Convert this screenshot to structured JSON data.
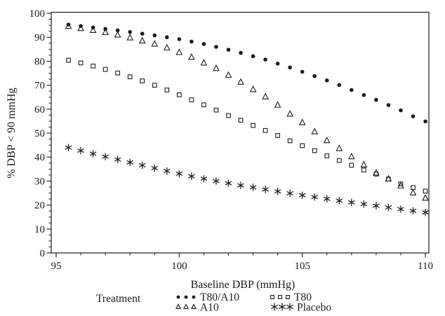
{
  "chart_data": {
    "type": "scatter",
    "title": "",
    "xlabel": "Baseline DBP (mmHg)",
    "ylabel": "% DBP < 90 mmHg",
    "legend_title": "Treatment",
    "legend_position": "bottom",
    "grid": "off",
    "background": "#ffffff",
    "foreground": "#1b1b1b",
    "xlim": [
      94.8,
      110.2
    ],
    "ylim": [
      0,
      100.3
    ],
    "x_ticks": [
      95,
      100,
      105,
      110
    ],
    "x_minor_tick_step": 1,
    "y_ticks": [
      0,
      10,
      20,
      30,
      40,
      50,
      60,
      70,
      80,
      90,
      100
    ],
    "y_minor_tick_step": 2.5,
    "x": [
      95.5,
      96,
      96.5,
      97,
      97.5,
      98,
      98.5,
      99,
      99.5,
      100,
      100.5,
      101,
      101.5,
      102,
      102.5,
      103,
      103.5,
      104,
      104.5,
      105,
      105.5,
      106,
      106.5,
      107,
      107.5,
      108,
      108.5,
      109,
      109.5,
      110
    ],
    "series": [
      {
        "name": "T80/A10",
        "marker": "filled-circle",
        "values": [
          95.3,
          94.7,
          94.1,
          93.5,
          92.9,
          92.2,
          91.5,
          90.8,
          90.0,
          89.2,
          88.2,
          87.2,
          86.0,
          84.8,
          83.5,
          82.1,
          80.7,
          79.0,
          77.4,
          75.6,
          73.8,
          72.0,
          70.1,
          68.0,
          65.9,
          63.9,
          61.7,
          59.5,
          57.0,
          54.9
        ]
      },
      {
        "name": "A10",
        "marker": "open-triangle",
        "values": [
          94.6,
          93.7,
          92.9,
          92.0,
          91.0,
          89.8,
          88.5,
          87.2,
          85.6,
          83.7,
          81.7,
          79.3,
          77.0,
          74.2,
          71.3,
          68.2,
          65.2,
          61.7,
          58.0,
          54.4,
          50.6,
          46.9,
          43.6,
          40.2,
          36.8,
          33.4,
          30.9,
          28.0,
          25.1,
          22.9
        ]
      },
      {
        "name": "T80",
        "marker": "open-square",
        "values": [
          80.4,
          79.3,
          78.0,
          76.6,
          75.1,
          73.5,
          71.8,
          70.0,
          68.0,
          66.0,
          63.9,
          61.8,
          59.6,
          57.3,
          55.4,
          53.2,
          51.1,
          49.0,
          46.8,
          44.8,
          42.7,
          40.5,
          38.6,
          36.6,
          34.6,
          32.9,
          30.8,
          28.8,
          27.3,
          25.8
        ]
      },
      {
        "name": "Placebo",
        "marker": "asterisk",
        "values": [
          44.0,
          42.7,
          41.4,
          40.2,
          39.0,
          37.8,
          36.6,
          35.4,
          34.2,
          33.1,
          32.0,
          31.0,
          30.0,
          29.1,
          28.2,
          27.4,
          26.5,
          25.7,
          24.9,
          24.1,
          23.3,
          22.6,
          21.8,
          21.1,
          20.4,
          19.7,
          19.0,
          18.3,
          17.6,
          16.9
        ]
      }
    ],
    "legend_layout": [
      [
        "T80/A10",
        "T80"
      ],
      [
        "A10",
        "Placebo"
      ]
    ]
  }
}
